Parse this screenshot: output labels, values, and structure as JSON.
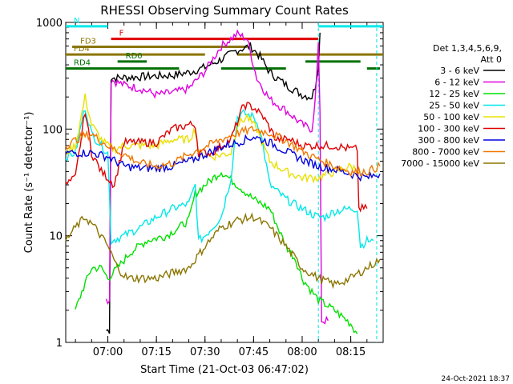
{
  "chart_data": {
    "type": "line",
    "title": "RHESSI Observing Summary Count Rates",
    "xlabel": "Start Time (21-Oct-03 06:47:02)",
    "ylabel": "Count Rate (s⁻¹ detector⁻¹)",
    "xlim_minutes_clock": [
      "06:47",
      "08:25"
    ],
    "ylim": [
      1,
      1000
    ],
    "yscale": "log",
    "x_ticks": [
      "07:00",
      "07:15",
      "07:30",
      "07:45",
      "08:00",
      "08:15"
    ],
    "y_ticks": [
      "1",
      "10",
      "100",
      "1000"
    ],
    "legend": {
      "header": [
        "Det 1,3,4,5,6,9,",
        "Att 0"
      ],
      "placement": "right"
    },
    "timestamp": "24-Oct-2021 18:37",
    "series": [
      {
        "name": "3 - 6 keV",
        "color": "#000000",
        "points": [
          [
            "06:59:30",
            1.3
          ],
          [
            "07:00:30",
            1.3
          ],
          [
            "07:01:00",
            300
          ],
          [
            "07:10",
            310
          ],
          [
            "07:20",
            320
          ],
          [
            "07:25",
            340
          ],
          [
            "07:30",
            380
          ],
          [
            "07:35",
            450
          ],
          [
            "07:40",
            550
          ],
          [
            "07:44",
            600
          ],
          [
            "07:47",
            480
          ],
          [
            "07:50",
            340
          ],
          [
            "07:55",
            260
          ],
          [
            "08:00",
            210
          ],
          [
            "08:03",
            200
          ],
          [
            "08:04",
            250
          ],
          [
            "08:05",
            400
          ],
          [
            "08:05:30",
            800
          ]
        ]
      },
      {
        "name": "6 - 12 keV",
        "color": "#e000e0",
        "points": [
          [
            "06:59:30",
            2.5
          ],
          [
            "07:00:30",
            2.5
          ],
          [
            "07:01:00",
            290
          ],
          [
            "07:05",
            260
          ],
          [
            "07:10",
            240
          ],
          [
            "07:15",
            210
          ],
          [
            "07:20",
            220
          ],
          [
            "07:25",
            240
          ],
          [
            "07:30",
            350
          ],
          [
            "07:35",
            600
          ],
          [
            "07:40",
            780
          ],
          [
            "07:43",
            700
          ],
          [
            "07:46",
            300
          ],
          [
            "07:50",
            190
          ],
          [
            "07:55",
            150
          ],
          [
            "08:00",
            110
          ],
          [
            "08:03",
            100
          ],
          [
            "08:04",
            180
          ],
          [
            "08:05",
            600
          ],
          [
            "08:05:30",
            150
          ],
          [
            "08:06",
            1.6
          ],
          [
            "08:08",
            1.6
          ]
        ]
      },
      {
        "name": "12 - 25 keV",
        "color": "#00e000",
        "points": [
          [
            "06:50",
            2
          ],
          [
            "06:52",
            3
          ],
          [
            "06:55",
            5
          ],
          [
            "06:58",
            5
          ],
          [
            "07:00",
            4
          ],
          [
            "07:03",
            5
          ],
          [
            "07:07",
            7
          ],
          [
            "07:12",
            9
          ],
          [
            "07:18",
            10
          ],
          [
            "07:22",
            12
          ],
          [
            "07:25",
            14
          ],
          [
            "07:27",
            25
          ],
          [
            "07:30",
            30
          ],
          [
            "07:35",
            40
          ],
          [
            "07:40",
            30
          ],
          [
            "07:45",
            22
          ],
          [
            "07:50",
            18
          ],
          [
            "07:55",
            8
          ],
          [
            "07:58",
            6
          ],
          [
            "08:00",
            4
          ],
          [
            "08:03",
            3
          ],
          [
            "08:05",
            2.5
          ],
          [
            "08:10",
            2
          ],
          [
            "08:15",
            1.5
          ],
          [
            "08:17",
            1.2
          ]
        ]
      },
      {
        "name": "25 - 50 keV",
        "color": "#00e8e8",
        "points": [
          [
            "06:47",
            55
          ],
          [
            "06:50",
            60
          ],
          [
            "06:52",
            120
          ],
          [
            "06:53",
            160
          ],
          [
            "06:55",
            90
          ],
          [
            "06:58",
            70
          ],
          [
            "07:00",
            60
          ],
          [
            "07:01",
            9
          ],
          [
            "07:05",
            10
          ],
          [
            "07:10",
            12
          ],
          [
            "07:15",
            15
          ],
          [
            "07:20",
            18
          ],
          [
            "07:25",
            20
          ],
          [
            "07:27",
            30
          ],
          [
            "07:28",
            9
          ],
          [
            "07:30",
            10
          ],
          [
            "07:35",
            15
          ],
          [
            "07:38",
            35
          ],
          [
            "07:40",
            130
          ],
          [
            "07:42",
            140
          ],
          [
            "07:45",
            130
          ],
          [
            "07:47",
            100
          ],
          [
            "07:50",
            30
          ],
          [
            "07:55",
            22
          ],
          [
            "08:00",
            18
          ],
          [
            "08:03",
            16
          ],
          [
            "08:05",
            15
          ],
          [
            "08:07",
            15
          ],
          [
            "08:10",
            17
          ],
          [
            "08:15",
            18
          ],
          [
            "08:17",
            18
          ],
          [
            "08:18",
            8
          ],
          [
            "08:20",
            9
          ],
          [
            "08:22",
            9
          ]
        ]
      },
      {
        "name": "50 - 100 keV",
        "color": "#e8e000",
        "points": [
          [
            "06:47",
            60
          ],
          [
            "06:50",
            70
          ],
          [
            "06:53",
            200
          ],
          [
            "06:55",
            110
          ],
          [
            "06:58",
            80
          ],
          [
            "07:00",
            70
          ],
          [
            "07:02",
            65
          ],
          [
            "07:05",
            70
          ],
          [
            "07:10",
            70
          ],
          [
            "07:15",
            70
          ],
          [
            "07:20",
            80
          ],
          [
            "07:25",
            80
          ],
          [
            "07:27",
            100
          ],
          [
            "07:28",
            60
          ],
          [
            "07:32",
            55
          ],
          [
            "07:38",
            60
          ],
          [
            "07:40",
            110
          ],
          [
            "07:43",
            130
          ],
          [
            "07:46",
            100
          ],
          [
            "07:50",
            50
          ],
          [
            "07:55",
            40
          ],
          [
            "08:00",
            35
          ],
          [
            "08:03",
            35
          ],
          [
            "08:05",
            35
          ],
          [
            "08:10",
            40
          ],
          [
            "08:15",
            45
          ],
          [
            "08:18",
            40
          ]
        ]
      },
      {
        "name": "100 - 300 keV",
        "color": "#e00000",
        "points": [
          [
            "06:47",
            30
          ],
          [
            "06:50",
            35
          ],
          [
            "06:53",
            150
          ],
          [
            "06:55",
            60
          ],
          [
            "06:58",
            40
          ],
          [
            "07:00",
            35
          ],
          [
            "07:02",
            30
          ],
          [
            "07:05",
            75
          ],
          [
            "07:10",
            75
          ],
          [
            "07:15",
            75
          ],
          [
            "07:20",
            100
          ],
          [
            "07:25",
            110
          ],
          [
            "07:27",
            110
          ],
          [
            "07:28",
            60
          ],
          [
            "07:32",
            60
          ],
          [
            "07:38",
            80
          ],
          [
            "07:42",
            170
          ],
          [
            "07:45",
            160
          ],
          [
            "07:48",
            130
          ],
          [
            "07:52",
            80
          ],
          [
            "07:56",
            80
          ],
          [
            "08:00",
            70
          ],
          [
            "08:05",
            70
          ],
          [
            "08:10",
            70
          ],
          [
            "08:15",
            65
          ],
          [
            "08:17",
            65
          ],
          [
            "08:17:30",
            18
          ],
          [
            "08:20",
            18
          ]
        ]
      },
      {
        "name": "300 - 800 keV",
        "color": "#0000e0",
        "points": [
          [
            "06:47",
            60
          ],
          [
            "06:55",
            60
          ],
          [
            "07:00",
            55
          ],
          [
            "07:05",
            45
          ],
          [
            "07:10",
            43
          ],
          [
            "07:15",
            43
          ],
          [
            "07:20",
            45
          ],
          [
            "07:25",
            50
          ],
          [
            "07:30",
            58
          ],
          [
            "07:35",
            68
          ],
          [
            "07:40",
            75
          ],
          [
            "07:45",
            85
          ],
          [
            "07:50",
            75
          ],
          [
            "07:55",
            62
          ],
          [
            "08:00",
            52
          ],
          [
            "08:05",
            45
          ],
          [
            "08:10",
            42
          ],
          [
            "08:15",
            38
          ],
          [
            "08:20",
            35
          ],
          [
            "08:24",
            38
          ]
        ]
      },
      {
        "name": "800 - 7000 keV",
        "color": "#f07800",
        "points": [
          [
            "06:47",
            70
          ],
          [
            "06:52",
            85
          ],
          [
            "06:55",
            90
          ],
          [
            "07:00",
            70
          ],
          [
            "07:05",
            58
          ],
          [
            "07:10",
            48
          ],
          [
            "07:15",
            45
          ],
          [
            "07:20",
            48
          ],
          [
            "07:25",
            58
          ],
          [
            "07:30",
            68
          ],
          [
            "07:35",
            80
          ],
          [
            "07:40",
            92
          ],
          [
            "07:45",
            100
          ],
          [
            "07:50",
            92
          ],
          [
            "07:55",
            78
          ],
          [
            "08:00",
            62
          ],
          [
            "08:05",
            52
          ],
          [
            "08:10",
            45
          ],
          [
            "08:15",
            40
          ],
          [
            "08:20",
            40
          ],
          [
            "08:24",
            45
          ]
        ]
      },
      {
        "name": "7000 - 15000 keV",
        "color": "#8b7500",
        "points": [
          [
            "06:47",
            9
          ],
          [
            "06:50",
            12
          ],
          [
            "06:53",
            15
          ],
          [
            "06:56",
            12
          ],
          [
            "07:00",
            8
          ],
          [
            "07:03",
            5
          ],
          [
            "07:06",
            4
          ],
          [
            "07:10",
            4
          ],
          [
            "07:15",
            4
          ],
          [
            "07:20",
            4.5
          ],
          [
            "07:25",
            5
          ],
          [
            "07:30",
            8
          ],
          [
            "07:35",
            12
          ],
          [
            "07:40",
            14
          ],
          [
            "07:45",
            15
          ],
          [
            "07:50",
            12
          ],
          [
            "07:55",
            8
          ],
          [
            "08:00",
            5
          ],
          [
            "08:05",
            4
          ],
          [
            "08:10",
            3.5
          ],
          [
            "08:15",
            4
          ],
          [
            "08:20",
            5
          ],
          [
            "08:24",
            6
          ]
        ]
      }
    ],
    "flag_bars": [
      {
        "label": "N",
        "color": "#00e8e8",
        "y": 920,
        "segments": [
          [
            "06:47",
            "07:00"
          ],
          [
            "08:05",
            "08:25"
          ]
        ]
      },
      {
        "label": "F",
        "color": "#e00000",
        "y": 700,
        "segments": [
          [
            "07:01",
            "08:05"
          ]
        ]
      },
      {
        "label": "FD3",
        "color": "#8b7500",
        "y": 590,
        "segments": [
          [
            "06:49",
            "07:43"
          ]
        ]
      },
      {
        "label": "FD4",
        "color": "#8b7500",
        "y": 500,
        "segments": [
          [
            "06:47",
            "07:30"
          ],
          [
            "07:40",
            "08:25"
          ]
        ]
      },
      {
        "label": "RD0",
        "color": "#007000",
        "y": 430,
        "segments": [
          [
            "07:03",
            "07:12"
          ],
          [
            "08:01",
            "08:18"
          ]
        ]
      },
      {
        "label": "RD4",
        "color": "#007000",
        "y": 370,
        "segments": [
          [
            "06:47",
            "07:22"
          ],
          [
            "07:35",
            "07:55"
          ],
          [
            "08:20",
            "08:24"
          ]
        ]
      }
    ]
  }
}
